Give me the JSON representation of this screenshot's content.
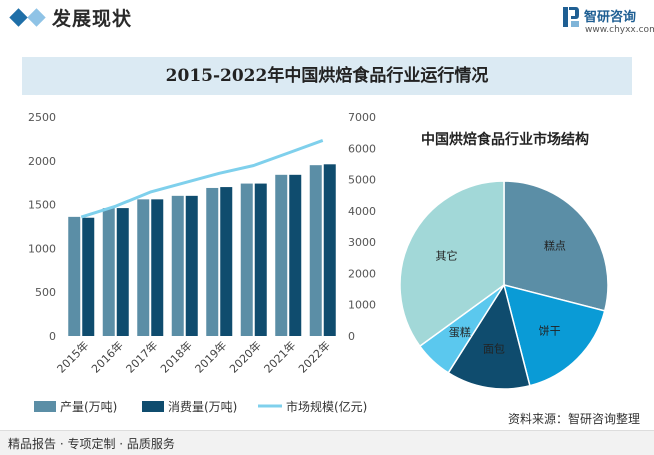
{
  "header": {
    "title": "发展现状",
    "brand": "智研咨询",
    "site": "www.chyxx.com"
  },
  "footer": {
    "left": "精品报告 · 专项定制 · 品质服务",
    "source": "资料来源：智研咨询整理"
  },
  "colors": {
    "production": "#5b8ea6",
    "consumption": "#0f4c6e",
    "market": "#7fd0ec",
    "header_accent": "#1f6fa8"
  },
  "chart_data": [
    {
      "type": "bar",
      "title": "2015-2022年中国烘焙食品行业运行情况",
      "categories": [
        "2015年",
        "2016年",
        "2017年",
        "2018年",
        "2019年",
        "2020年",
        "2021年",
        "2022年"
      ],
      "series": [
        {
          "name": "产量(万吨)",
          "type": "bar",
          "axis": "left",
          "values": [
            1360,
            1460,
            1560,
            1600,
            1690,
            1740,
            1840,
            1950
          ]
        },
        {
          "name": "消费量(万吨)",
          "type": "bar",
          "axis": "left",
          "values": [
            1350,
            1460,
            1560,
            1600,
            1700,
            1740,
            1840,
            1960
          ]
        },
        {
          "name": "市场规模(亿元)",
          "type": "line",
          "axis": "right",
          "values": [
            3800,
            4150,
            4600,
            4900,
            5200,
            5450,
            5850,
            6250
          ]
        }
      ],
      "y_left": {
        "lim": [
          0,
          2500
        ],
        "ticks": [
          0,
          500,
          1000,
          1500,
          2000,
          2500
        ]
      },
      "y_right": {
        "lim": [
          0,
          7000
        ],
        "ticks": [
          0,
          1000,
          2000,
          3000,
          4000,
          5000,
          6000,
          7000
        ]
      },
      "grid": false,
      "legend": "bottom"
    },
    {
      "type": "pie",
      "title": "中国烘焙食品行业市场结构",
      "labels": [
        "糕点",
        "饼干",
        "面包",
        "蛋糕",
        "其它"
      ],
      "values": [
        29,
        17,
        13,
        6,
        35
      ],
      "colors": [
        "#5b8ea6",
        "#0a9bd6",
        "#0f4c6e",
        "#5bc8ee",
        "#a2d8d8"
      ]
    }
  ]
}
